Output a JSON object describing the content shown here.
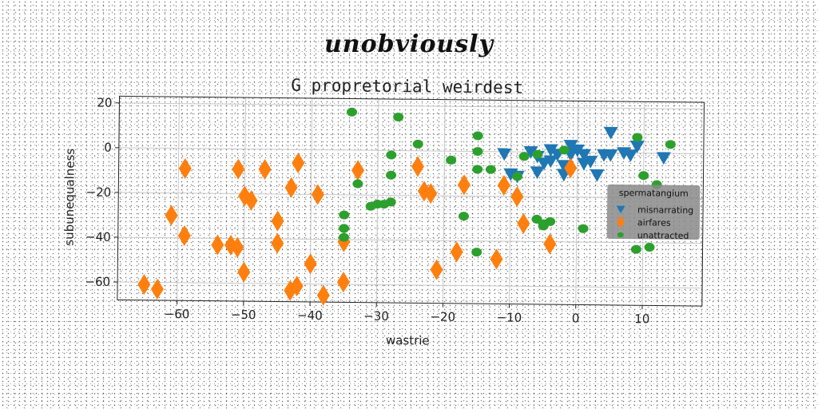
{
  "header_title": "unobviously",
  "chart_data": {
    "type": "scatter",
    "title": "G propretorial weirdest",
    "xlabel": "wastrie",
    "ylabel": "subunequalness",
    "xlim": [
      -69,
      19
    ],
    "ylim": [
      -68,
      23
    ],
    "xticks": [
      -60,
      -50,
      -40,
      -30,
      -20,
      -10,
      0,
      10
    ],
    "yticks": [
      20,
      0,
      -20,
      -40,
      -60
    ],
    "grid": true,
    "legend": {
      "title": "spermatangium",
      "placement": "center-right"
    },
    "series": [
      {
        "name": "misnarrating",
        "marker": "triangle-down",
        "color": "#1f77b4",
        "points": [
          [
            -11,
            -1
          ],
          [
            -10,
            -10
          ],
          [
            -9,
            -11
          ],
          [
            -7,
            0
          ],
          [
            -6,
            -2
          ],
          [
            -5,
            -5
          ],
          [
            -4,
            1
          ],
          [
            -3,
            -1
          ],
          [
            -2,
            -6
          ],
          [
            -1,
            -1
          ],
          [
            0,
            1
          ],
          [
            -1,
            3
          ],
          [
            1,
            -1
          ],
          [
            1,
            -5
          ],
          [
            2,
            -4
          ],
          [
            3,
            -10
          ],
          [
            4,
            -1
          ],
          [
            5,
            -1
          ],
          [
            5,
            9
          ],
          [
            7,
            0
          ],
          [
            8,
            -1
          ],
          [
            9,
            3
          ],
          [
            -6,
            -9
          ],
          [
            -4,
            -4
          ],
          [
            -2,
            -10
          ],
          [
            13,
            -2
          ]
        ]
      },
      {
        "name": "airfares",
        "marker": "diamond",
        "color": "#ff7f0e",
        "points": [
          [
            -65,
            -61
          ],
          [
            -63,
            -63
          ],
          [
            -61,
            -30
          ],
          [
            -59,
            -39
          ],
          [
            -59,
            -9
          ],
          [
            -54,
            -43
          ],
          [
            -52,
            -43
          ],
          [
            -51,
            -44
          ],
          [
            -51,
            -9
          ],
          [
            -50,
            -55
          ],
          [
            -50,
            -21
          ],
          [
            -49,
            -23
          ],
          [
            -47,
            -9
          ],
          [
            -45,
            -42
          ],
          [
            -45,
            -32
          ],
          [
            -43,
            -17
          ],
          [
            -43,
            -63
          ],
          [
            -42,
            -61
          ],
          [
            -42,
            -6
          ],
          [
            -40,
            -51
          ],
          [
            -39,
            -20
          ],
          [
            -38,
            -65
          ],
          [
            -35,
            -59
          ],
          [
            -35,
            -41
          ],
          [
            -33,
            -9
          ],
          [
            -24,
            -7
          ],
          [
            -23,
            -18
          ],
          [
            -22,
            -19
          ],
          [
            -21,
            -53
          ],
          [
            -18,
            -45
          ],
          [
            -17,
            -15
          ],
          [
            -12,
            -48
          ],
          [
            -11,
            -15
          ],
          [
            -9,
            -20
          ],
          [
            -8,
            -32
          ],
          [
            -4,
            -41
          ],
          [
            -1,
            -7
          ]
        ]
      },
      {
        "name": "unattracted",
        "marker": "circle",
        "color": "#2ca02c",
        "points": [
          [
            -34,
            17
          ],
          [
            -27,
            15
          ],
          [
            -28,
            -2
          ],
          [
            -24,
            3
          ],
          [
            -28,
            -11
          ],
          [
            -33,
            -15
          ],
          [
            -31,
            -25
          ],
          [
            -30,
            -24
          ],
          [
            -29,
            -24
          ],
          [
            -28,
            -23
          ],
          [
            -35,
            -29
          ],
          [
            -35,
            -35
          ],
          [
            -35,
            -39
          ],
          [
            -19,
            -4
          ],
          [
            -17,
            -29
          ],
          [
            -15,
            7
          ],
          [
            -15,
            0
          ],
          [
            -15,
            -8
          ],
          [
            -13,
            -8
          ],
          [
            -15,
            -45
          ],
          [
            -8,
            -2
          ],
          [
            -9,
            -11
          ],
          [
            -6,
            -30
          ],
          [
            -5,
            -32
          ],
          [
            -5,
            -33
          ],
          [
            -2,
            1
          ],
          [
            -4,
            -31
          ],
          [
            1,
            -34
          ],
          [
            9,
            7
          ],
          [
            10,
            -10
          ],
          [
            11,
            -42
          ],
          [
            9,
            -43
          ],
          [
            14,
            4
          ],
          [
            12,
            -14
          ],
          [
            -6,
            -1
          ]
        ]
      }
    ]
  }
}
